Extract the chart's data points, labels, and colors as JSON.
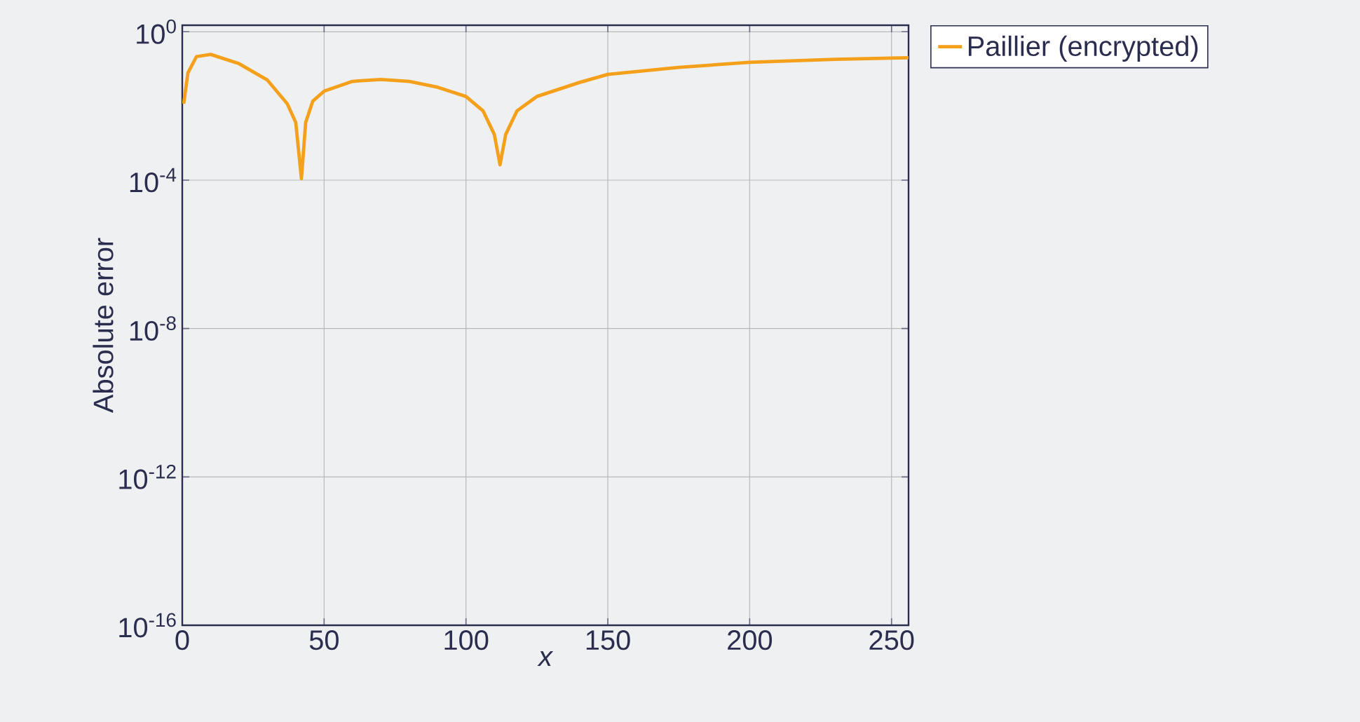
{
  "chart_data": {
    "type": "line",
    "xlabel": "x",
    "ylabel": "Absolute error",
    "log": "y",
    "grid": true,
    "legend": "top right",
    "marker": "none",
    "line_style": "solid",
    "xlim": [
      0,
      256
    ],
    "xticks": [
      0,
      50,
      100,
      150,
      200,
      250
    ],
    "ylim": [
      1e-16,
      1.5
    ],
    "yticks": [
      {
        "value": 1e-16,
        "label": "10$^{-16}$"
      },
      {
        "value": 1e-12,
        "label": "10$^{-12}$"
      },
      {
        "value": 1e-08,
        "label": "10$^{-8}$"
      },
      {
        "value": 0.0001,
        "label": "10$^{-4}$"
      },
      {
        "value": 1,
        "label": "10$^{0}$"
      }
    ],
    "x": [
      0.5,
      2,
      5,
      10,
      20,
      30,
      37,
      40,
      42,
      43.5,
      46,
      50,
      60,
      70,
      80,
      90,
      100,
      106,
      110,
      112,
      114,
      118,
      125,
      140,
      150,
      175,
      200,
      230,
      256
    ],
    "series": [
      {
        "name": "Paillier (encrypted)",
        "color": "#f5a01a",
        "values": [
          0.0115,
          0.078,
          0.214,
          0.245,
          0.138,
          0.05,
          0.0115,
          0.0036,
          0.00011,
          0.0036,
          0.0135,
          0.025,
          0.046,
          0.052,
          0.046,
          0.032,
          0.018,
          0.0074,
          0.0017,
          0.00026,
          0.0017,
          0.0074,
          0.018,
          0.043,
          0.071,
          0.11,
          0.15,
          0.18,
          0.2
        ]
      }
    ]
  }
}
